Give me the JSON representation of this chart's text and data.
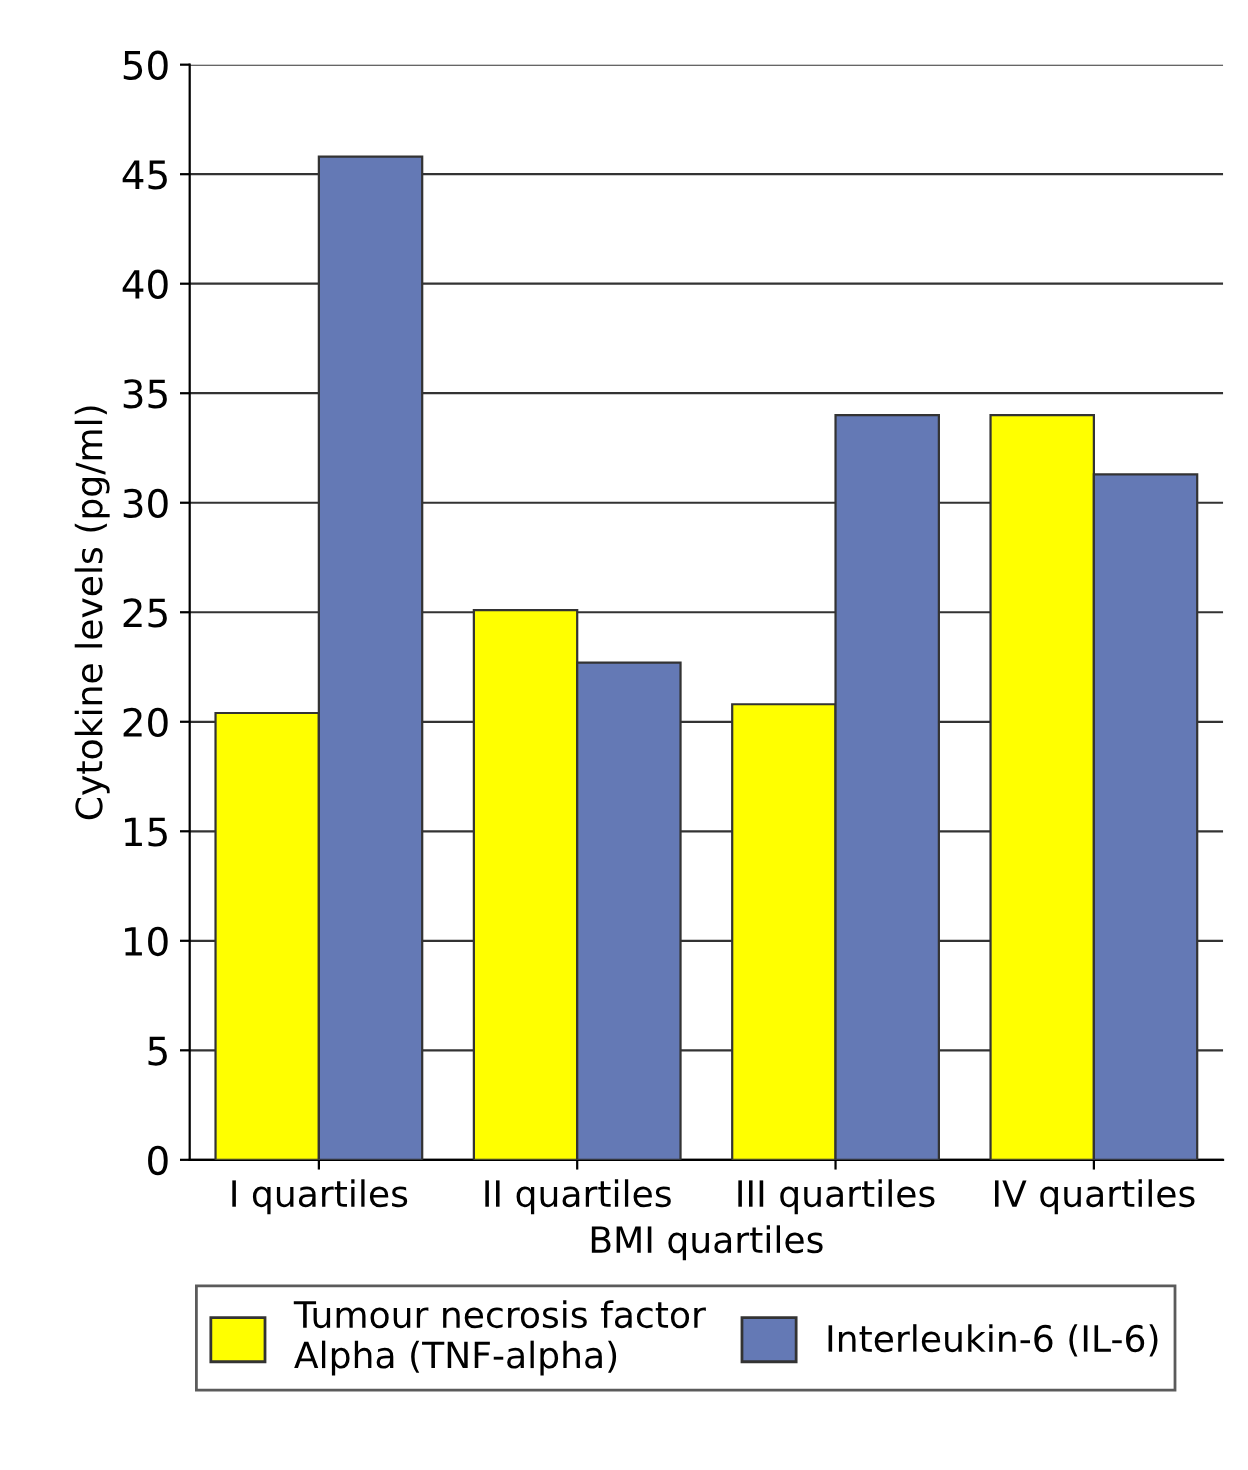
{
  "chart_data": {
    "type": "bar",
    "xlabel": "BMI quartiles",
    "ylabel": "Cytokine levels (pg/ml)",
    "categories": [
      "I quartiles",
      "II quartiles",
      "III quartiles",
      "IV quartiles"
    ],
    "series": [
      {
        "name": "Tumour necrosis factor\nAlpha (TNF-alpha)",
        "color": "#ffff00",
        "values": [
          20.4,
          25.1,
          20.8,
          34.0
        ]
      },
      {
        "name": "Interleukin-6 (IL-6)",
        "color": "#6479b5",
        "values": [
          45.8,
          22.7,
          34.0,
          31.3
        ]
      }
    ],
    "ylim": [
      0,
      50
    ],
    "yticks": [
      0,
      5,
      10,
      15,
      20,
      25,
      30,
      35,
      40,
      45,
      50
    ],
    "grid": "y",
    "legend": "bottom"
  }
}
